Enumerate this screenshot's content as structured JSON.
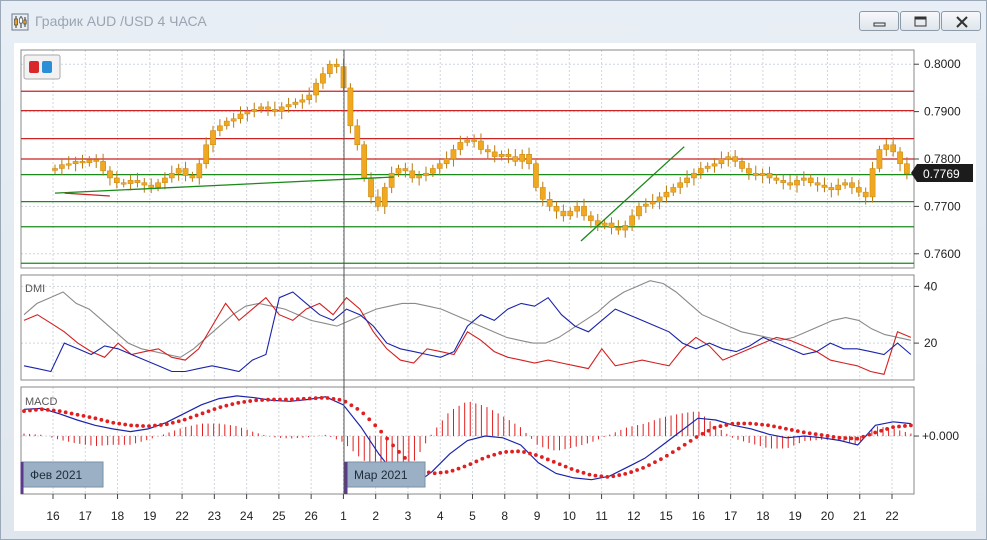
{
  "window": {
    "title": "График AUD /USD  4 ЧАСА",
    "icon": "candlestick-chart-icon",
    "buttons": [
      "minimize-icon",
      "restore-icon",
      "close-icon"
    ]
  },
  "chart_data": [
    {
      "type": "candlestick",
      "title": "",
      "current_price": "0.7769",
      "y_ticks": [
        "0.8000",
        "0.7900",
        "0.7800",
        "0.7700",
        "0.7600"
      ],
      "ylim": [
        0.757,
        0.803
      ],
      "x_tick_labels": [
        "16",
        "17",
        "18",
        "19",
        "22",
        "23",
        "24",
        "25",
        "26",
        "1",
        "2",
        "3",
        "4",
        "5",
        "8",
        "9",
        "10",
        "11",
        "12",
        "15",
        "16",
        "17",
        "18",
        "19",
        "20",
        "21",
        "22"
      ],
      "month_markers": [
        {
          "label": "Фев 2021",
          "at_day": "16"
        },
        {
          "label": "Мар 2021",
          "at_day": "1"
        }
      ],
      "horizontal_levels": {
        "red": [
          0.7943,
          0.7902,
          0.7843,
          0.78
        ],
        "green": [
          0.7767,
          0.771,
          0.7657,
          0.758
        ]
      },
      "trendlines": [
        {
          "color": "#1a8a1a",
          "from": [
            0,
            0.7728
          ],
          "to": [
            10.5,
            0.7762
          ]
        },
        {
          "color": "#1a8a1a",
          "from": [
            16.3,
            0.7627
          ],
          "to": [
            19.5,
            0.7826
          ]
        },
        {
          "color": "#cc2222",
          "from": [
            0.3,
            0.7728
          ],
          "to": [
            1.7,
            0.7722
          ]
        }
      ],
      "close": [
        0.778,
        0.7788,
        0.779,
        0.7795,
        0.7792,
        0.7798,
        0.7795,
        0.7775,
        0.776,
        0.775,
        0.7748,
        0.7755,
        0.775,
        0.7745,
        0.774,
        0.775,
        0.776,
        0.777,
        0.778,
        0.7765,
        0.776,
        0.779,
        0.783,
        0.786,
        0.787,
        0.788,
        0.7885,
        0.7895,
        0.79,
        0.7905,
        0.791,
        0.7905,
        0.79,
        0.791,
        0.7915,
        0.792,
        0.7925,
        0.7935,
        0.796,
        0.798,
        0.8,
        0.7995,
        0.795,
        0.787,
        0.783,
        0.776,
        0.772,
        0.77,
        0.774,
        0.777,
        0.778,
        0.7775,
        0.776,
        0.7765,
        0.777,
        0.778,
        0.779,
        0.78,
        0.782,
        0.7835,
        0.784,
        0.7838,
        0.782,
        0.7815,
        0.7805,
        0.781,
        0.7805,
        0.7795,
        0.781,
        0.779,
        0.774,
        0.7715,
        0.77,
        0.769,
        0.768,
        0.769,
        0.77,
        0.768,
        0.767,
        0.766,
        0.7665,
        0.7655,
        0.765,
        0.766,
        0.768,
        0.77,
        0.7705,
        0.771,
        0.772,
        0.773,
        0.774,
        0.775,
        0.776,
        0.777,
        0.778,
        0.7785,
        0.779,
        0.78,
        0.7805,
        0.7795,
        0.778,
        0.777,
        0.7765,
        0.777,
        0.776,
        0.7755,
        0.775,
        0.7745,
        0.7755,
        0.776,
        0.775,
        0.7745,
        0.774,
        0.7735,
        0.7745,
        0.775,
        0.774,
        0.773,
        0.772,
        0.778,
        0.782,
        0.783,
        0.7815,
        0.779,
        0.7769
      ],
      "x_range_days": [
        0,
        26.4
      ]
    },
    {
      "type": "line",
      "indicator": "DMI",
      "y_ticks": [
        "40",
        "20"
      ],
      "ylim": [
        7,
        44
      ],
      "series": [
        {
          "color": "#8a8a8a",
          "values": [
            30,
            34,
            36,
            38,
            34,
            32,
            28,
            24,
            20,
            18,
            17,
            16,
            15,
            18,
            22,
            26,
            30,
            33,
            34,
            33,
            32,
            30,
            28,
            27,
            26,
            28,
            30,
            32,
            33,
            34,
            34,
            33,
            32,
            30,
            28,
            26,
            24,
            22,
            21,
            20,
            20,
            22,
            25,
            28,
            31,
            35,
            38,
            40,
            42,
            41,
            38,
            34,
            30,
            28,
            26,
            24,
            23,
            22,
            21,
            22,
            24,
            26,
            28,
            29,
            28,
            25,
            23,
            22,
            21
          ]
        },
        {
          "color": "#d42020",
          "values": [
            28,
            30,
            27,
            24,
            20,
            17,
            15,
            20,
            16,
            17,
            18,
            15,
            14,
            18,
            26,
            34,
            28,
            32,
            36,
            30,
            28,
            32,
            34,
            30,
            36,
            32,
            24,
            18,
            14,
            13,
            18,
            17,
            16,
            24,
            21,
            17,
            15,
            14,
            13,
            14,
            13,
            12,
            11,
            18,
            12,
            13,
            14,
            13,
            12,
            18,
            22,
            19,
            14,
            16,
            18,
            20,
            22,
            21,
            19,
            17,
            14,
            13,
            12,
            10,
            9,
            24,
            22
          ]
        },
        {
          "color": "#1a24aa",
          "values": [
            12,
            11,
            10,
            20,
            18,
            16,
            19,
            18,
            16,
            14,
            12,
            10,
            10,
            11,
            12,
            11,
            10,
            14,
            16,
            36,
            38,
            34,
            30,
            28,
            32,
            30,
            26,
            20,
            18,
            17,
            16,
            15,
            17,
            26,
            30,
            28,
            32,
            34,
            33,
            36,
            30,
            26,
            24,
            28,
            32,
            30,
            28,
            26,
            24,
            20,
            18,
            20,
            18,
            17,
            19,
            22,
            20,
            18,
            16,
            17,
            20,
            18,
            18,
            17,
            16,
            20,
            16
          ]
        }
      ]
    },
    {
      "type": "macd",
      "indicator": "MACD",
      "y_ticks": [
        "+0.000"
      ],
      "ylim": [
        -0.0065,
        0.0055
      ],
      "macd_line": [
        0.003,
        0.0031,
        0.0025,
        0.0018,
        0.0012,
        0.0008,
        0.0005,
        0.0008,
        0.0015,
        0.0025,
        0.0035,
        0.0042,
        0.0045,
        0.0043,
        0.004,
        0.0039,
        0.0041,
        0.0044,
        0.0035,
        0.001,
        -0.002,
        -0.0045,
        -0.0055,
        -0.004,
        -0.002,
        -0.0005,
        0.0,
        -0.0002,
        -0.001,
        -0.003,
        -0.0042,
        -0.0047,
        -0.0049,
        -0.0045,
        -0.0035,
        -0.0025,
        -0.001,
        0.0005,
        0.002,
        0.0018,
        0.0012,
        0.0008,
        0.0002,
        -0.0002,
        0.0,
        -0.0002,
        -0.0005,
        -0.001,
        0.0012,
        0.0016,
        0.0014
      ],
      "signal_line": [
        0.0028,
        0.003,
        0.0028,
        0.0024,
        0.002,
        0.0015,
        0.0012,
        0.0011,
        0.0013,
        0.0018,
        0.0025,
        0.0032,
        0.0037,
        0.004,
        0.0041,
        0.0041,
        0.0042,
        0.0043,
        0.004,
        0.0028,
        0.0008,
        -0.0015,
        -0.0035,
        -0.0042,
        -0.004,
        -0.0033,
        -0.0024,
        -0.0018,
        -0.0017,
        -0.0022,
        -0.003,
        -0.0038,
        -0.0044,
        -0.0046,
        -0.0042,
        -0.0035,
        -0.0025,
        -0.0013,
        0.0,
        0.001,
        0.0014,
        0.0014,
        0.0012,
        0.0008,
        0.0004,
        0.0001,
        -0.0002,
        -0.0003,
        0.0004,
        0.001,
        0.0012
      ]
    }
  ]
}
